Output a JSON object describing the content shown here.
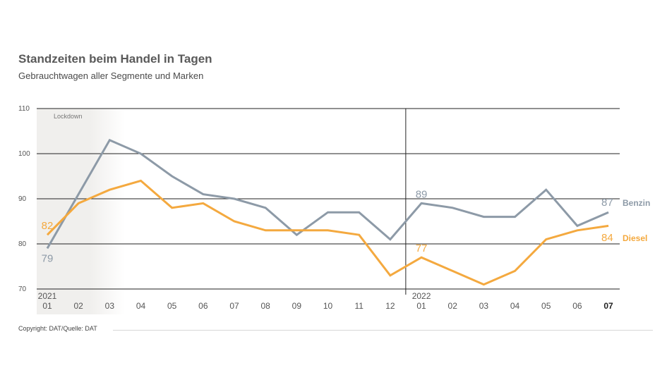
{
  "title": "Standzeiten beim Handel in Tagen",
  "subtitle": "Gebrauchtwagen aller Segmente und Marken",
  "copyright": "Copyright: DAT/Quelle: DAT",
  "colors": {
    "benzin": "#8d9aa7",
    "diesel": "#f4a93f",
    "shade": "#f0efed",
    "grid": "#222222"
  },
  "chart_data": {
    "type": "line",
    "title": "Standzeiten beim Handel in Tagen",
    "subtitle": "Gebrauchtwagen aller Segmente und Marken",
    "xlabel": "",
    "ylabel": "",
    "ylim": [
      70,
      110
    ],
    "yticks": [
      70,
      80,
      90,
      100,
      110
    ],
    "grid": true,
    "categories": [
      "01",
      "02",
      "03",
      "04",
      "05",
      "06",
      "07",
      "08",
      "09",
      "10",
      "11",
      "12",
      "01",
      "02",
      "03",
      "04",
      "05",
      "06",
      "07"
    ],
    "year_labels": [
      {
        "index": 0,
        "label": "2021"
      },
      {
        "index": 12,
        "label": "2022"
      }
    ],
    "bold_category_index": 18,
    "annotation_shade": {
      "label": "Lockdown",
      "from_index": 0,
      "to_index": 2
    },
    "series": [
      {
        "name": "Benzin",
        "values": [
          79,
          91,
          103,
          100,
          95,
          91,
          90,
          88,
          82,
          87,
          87,
          81,
          89,
          88,
          86,
          86,
          92,
          84,
          87
        ],
        "labels": [
          {
            "index": 0,
            "text": "79",
            "pos": "below"
          },
          {
            "index": 12,
            "text": "89",
            "pos": "above"
          },
          {
            "index": 18,
            "text": "87",
            "pos": "end"
          }
        ]
      },
      {
        "name": "Diesel",
        "values": [
          82,
          89,
          92,
          94,
          88,
          89,
          85,
          83,
          83,
          83,
          82,
          73,
          77,
          74,
          71,
          74,
          81,
          83,
          84
        ],
        "labels": [
          {
            "index": 0,
            "text": "82",
            "pos": "above"
          },
          {
            "index": 12,
            "text": "77",
            "pos": "above"
          },
          {
            "index": 18,
            "text": "84",
            "pos": "end"
          }
        ]
      }
    ],
    "legend": "right-end"
  }
}
